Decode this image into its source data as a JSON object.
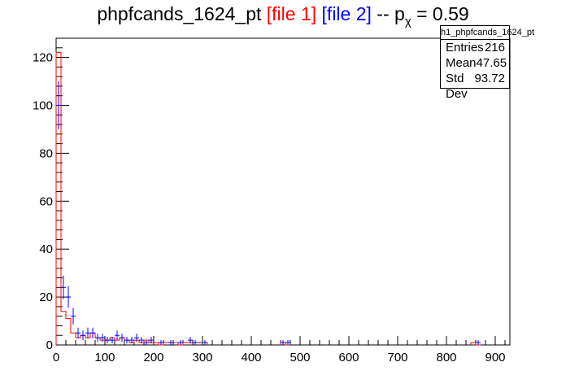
{
  "title": {
    "main": "phpfcands_1624_pt",
    "file1": "[file 1]",
    "file2": "[file 2]",
    "sep": " -- p",
    "sub": "χ",
    "eq": " = 0.59"
  },
  "stats": {
    "name": "h1_phpfcands_1624_pt",
    "rows": [
      {
        "label": "Entries",
        "value": "216"
      },
      {
        "label": "Mean",
        "value": "47.65"
      },
      {
        "label": "Std Dev",
        "value": "93.72"
      }
    ]
  },
  "colors": {
    "file1": "#ff0000",
    "file2": "#0000ff",
    "axis": "#000000"
  },
  "chart_data": {
    "type": "line",
    "title": "phpfcands_1624_pt [file 1] [file 2] -- pχ = 0.59",
    "xlim": [
      0,
      930
    ],
    "ylim": [
      0,
      128
    ],
    "xticks": [
      0,
      100,
      200,
      300,
      400,
      500,
      600,
      700,
      800,
      900
    ],
    "yticks": [
      0,
      20,
      40,
      60,
      80,
      100,
      120
    ],
    "bin_width": 10,
    "series": [
      {
        "name": "[file 1]",
        "style": "step",
        "x": [
          0,
          10,
          20,
          30,
          40,
          50,
          60,
          70,
          80,
          90,
          100,
          110,
          120,
          130,
          140,
          150,
          160,
          170,
          180,
          190,
          200,
          210,
          220,
          230,
          240,
          250,
          260,
          270,
          280,
          290,
          300,
          460,
          470,
          850,
          860
        ],
        "values": [
          122,
          14,
          11,
          5,
          3,
          4,
          3,
          5,
          3,
          2,
          2,
          3,
          2,
          3,
          2,
          1,
          2,
          1,
          2,
          1,
          1,
          0,
          1,
          1,
          1,
          0,
          1,
          1,
          1,
          1,
          1,
          1,
          0,
          1,
          0
        ]
      },
      {
        "name": "[file 2]",
        "style": "errorbar",
        "x": [
          5,
          15,
          25,
          35,
          45,
          55,
          65,
          75,
          85,
          95,
          105,
          115,
          125,
          135,
          145,
          155,
          165,
          175,
          185,
          195,
          215,
          235,
          255,
          275,
          285,
          305,
          465,
          475,
          865
        ],
        "values": [
          100,
          24,
          20,
          12,
          5,
          4,
          5,
          5,
          3,
          3,
          2,
          2,
          4,
          3,
          2,
          2,
          3,
          2,
          1,
          2,
          1,
          1,
          1,
          2,
          1,
          1,
          1,
          1,
          1
        ]
      }
    ]
  }
}
